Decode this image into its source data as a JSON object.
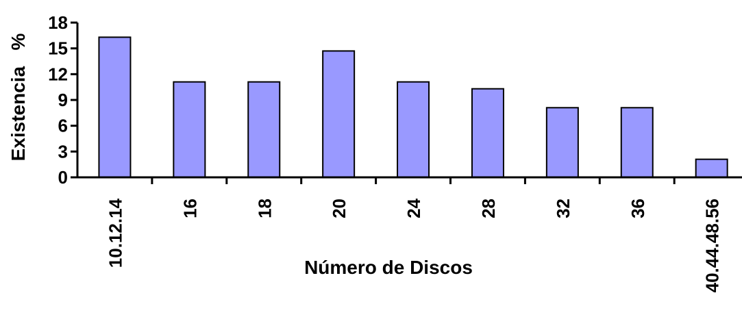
{
  "chart_data": {
    "type": "bar",
    "categories": [
      "10.12.14",
      "16",
      "18",
      "20",
      "24",
      "28",
      "32",
      "36",
      "40.44.48.56"
    ],
    "values": [
      16.3,
      11.1,
      11.1,
      14.7,
      11.1,
      10.3,
      8.1,
      8.1,
      2.1
    ],
    "title": "",
    "xlabel": "Número de Discos",
    "ylabel": "Existencia   %",
    "ylim": [
      0,
      18
    ],
    "yticks": [
      0,
      3,
      6,
      9,
      12,
      15,
      18
    ],
    "grid": false,
    "legend": "none",
    "bar_color": "#9999ff",
    "bar_edge_color": "#000000"
  }
}
